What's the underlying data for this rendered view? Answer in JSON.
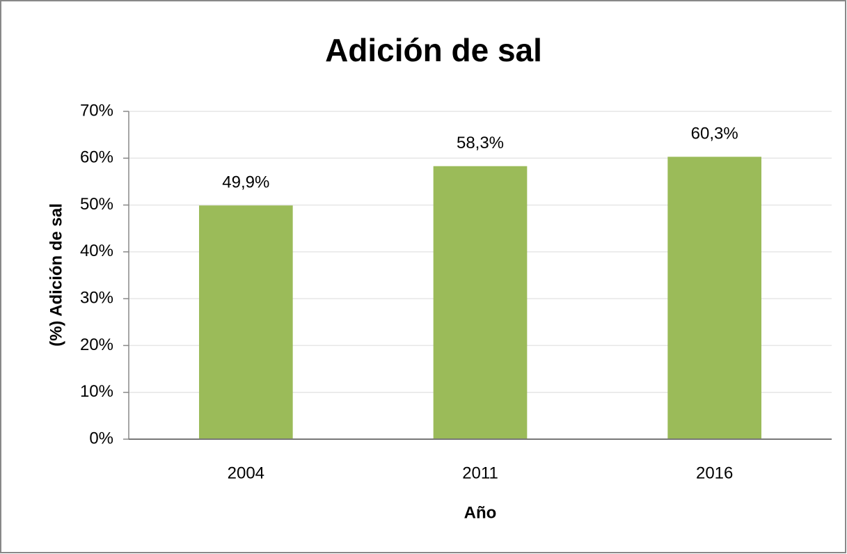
{
  "chart_data": {
    "type": "bar",
    "title": "Adición de sal",
    "x_label": "Año",
    "y_label": "(%) Adición de sal",
    "categories": [
      "2004",
      "2011",
      "2016"
    ],
    "values": [
      49.9,
      58.3,
      60.3
    ],
    "value_labels": [
      "49,9%",
      "58,3%",
      "60,3%"
    ],
    "color": "#9bbb59",
    "ylim": [
      0,
      70
    ],
    "yticks": [
      {
        "value": 0,
        "label": "0%"
      },
      {
        "value": 10,
        "label": "10%"
      },
      {
        "value": 20,
        "label": "20%"
      },
      {
        "value": 30,
        "label": "30%"
      },
      {
        "value": 40,
        "label": "40%"
      },
      {
        "value": 50,
        "label": "50%"
      },
      {
        "value": 60,
        "label": "60%"
      },
      {
        "value": 70,
        "label": "70%"
      }
    ],
    "grid": true
  }
}
